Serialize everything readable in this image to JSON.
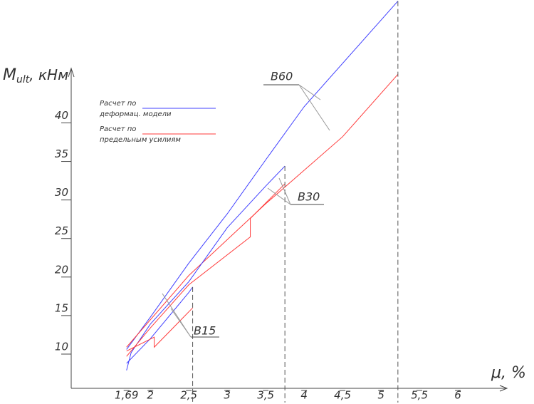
{
  "chart_data": {
    "type": "line",
    "y_label": "M",
    "y_label_sub": "ult",
    "y_label_unit": ", кНм",
    "x_label": "μ, %",
    "xlim": [
      0.97,
      6.62
    ],
    "ylim": [
      5.56,
      46.7
    ],
    "xticks": [
      {
        "value": 1.69,
        "label": "1,69"
      },
      2,
      {
        "value": 2.5,
        "label": "2,5"
      },
      3,
      {
        "value": 3.5,
        "label": "3,5"
      },
      4,
      {
        "value": 4.5,
        "label": "4,5"
      },
      5,
      {
        "value": 5.5,
        "label": "5,5"
      },
      6
    ],
    "yticks": [
      10,
      15,
      20,
      25,
      30,
      35,
      40
    ],
    "legend": [
      {
        "label": [
          "Расчет по",
          "деформац. модели"
        ],
        "color": "#4040ff"
      },
      {
        "label": [
          "Расчет по",
          "предельным усилиям"
        ],
        "color": "#ff3b3b"
      }
    ],
    "groups": [
      {
        "name": "B60",
        "series": [
          {
            "color": "#4040ff",
            "x": [
              1.69,
              2,
              2.5,
              3,
              3.5,
              4,
              5.22
            ],
            "values": [
              10.6,
              14.8,
              21.8,
              28.2,
              35.2,
              42.1,
              55.8
            ]
          },
          {
            "color": "#ff3b3b",
            "x": [
              1.69,
              2.5,
              3.5,
              4.5,
              5.22
            ],
            "values": [
              10.9,
              20.2,
              29.5,
              38.2,
              46.3
            ]
          }
        ]
      },
      {
        "name": "B30",
        "series": [
          {
            "color": "#4040ff",
            "x": [
              1.69,
              1.75,
              2,
              2.5,
              3,
              3.5,
              3.75
            ],
            "values": [
              7.9,
              10.2,
              13.9,
              19.4,
              26.4,
              31.8,
              34.4
            ]
          },
          {
            "color": "#ff3b3b",
            "x": [
              1.69,
              2,
              2.5,
              3.3,
              3.3,
              3.75
            ],
            "values": [
              9.7,
              13.4,
              19,
              25.2,
              27.6,
              32.1
            ]
          }
        ]
      },
      {
        "name": "B15",
        "series": [
          {
            "color": "#4040ff",
            "x": [
              1.69,
              2,
              2.5,
              2.55
            ],
            "values": [
              8.8,
              12,
              18,
              18.7
            ]
          },
          {
            "color": "#ff3b3b",
            "x": [
              1.69,
              2.05,
              2.05,
              2.55
            ],
            "values": [
              10.4,
              12.2,
              10.9,
              16
            ]
          }
        ]
      }
    ]
  }
}
